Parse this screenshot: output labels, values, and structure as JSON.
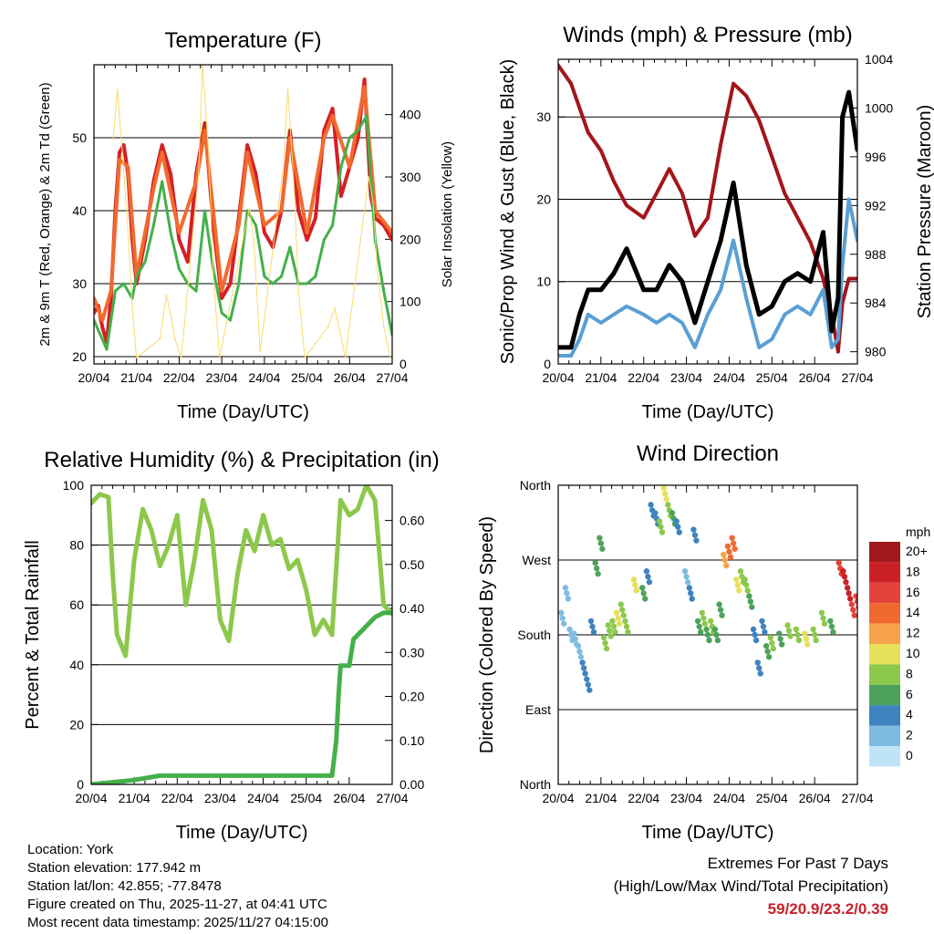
{
  "chart_data": [
    {
      "type": "line",
      "title": "Temperature (F)",
      "xlabel": "Time (Day/UTC)",
      "ylabel": "2m & 9m T (Red, Orange) & 2m Td (Green)",
      "ylabel_right": "Solar Insolation (Yellow)",
      "x_ticks": [
        "20/04",
        "21/04",
        "22/04",
        "23/04",
        "24/04",
        "25/04",
        "26/04",
        "27/04"
      ],
      "ylim": [
        19,
        60
      ],
      "y_ticks": [
        20,
        30,
        40,
        50
      ],
      "ylim_right": [
        0,
        480
      ],
      "y_ticks_right": [
        0,
        100,
        200,
        300,
        400
      ],
      "grid": true,
      "series": [
        {
          "name": "2m T",
          "color": "#d42026",
          "x": [
            0,
            0.1,
            0.2,
            0.3,
            0.4,
            0.5,
            0.6,
            0.7,
            0.8,
            0.9,
            1.0,
            1.2,
            1.4,
            1.6,
            1.8,
            2.0,
            2.2,
            2.4,
            2.6,
            2.8,
            3.0,
            3.2,
            3.4,
            3.6,
            3.8,
            4.0,
            4.2,
            4.4,
            4.6,
            4.8,
            5.0,
            5.2,
            5.4,
            5.6,
            5.8,
            6.0,
            6.2,
            6.35,
            6.5,
            6.6,
            6.8,
            7.0
          ],
          "values": [
            26,
            27,
            24,
            22,
            28,
            40,
            48,
            49,
            45,
            36,
            30,
            36,
            44,
            49,
            45,
            36,
            33,
            45,
            52,
            38,
            28,
            30,
            39,
            49,
            45,
            37,
            35,
            40,
            51,
            40,
            36,
            39,
            51,
            54,
            42,
            46,
            50,
            58,
            42,
            39,
            38,
            36
          ]
        },
        {
          "name": "9m T",
          "color": "#f26a2e",
          "x": [
            0,
            0.2,
            0.4,
            0.6,
            0.8,
            1.0,
            1.4,
            1.6,
            2.0,
            2.4,
            2.6,
            3.0,
            3.4,
            3.6,
            4.0,
            4.4,
            4.6,
            5.0,
            5.4,
            5.6,
            6.0,
            6.35,
            6.6,
            7.0
          ],
          "values": [
            28,
            25,
            29,
            47,
            46,
            31,
            43,
            48,
            37,
            44,
            51,
            29,
            38,
            48,
            38,
            40,
            50,
            37,
            50,
            53,
            46,
            57,
            40,
            37
          ]
        },
        {
          "name": "2m Td",
          "color": "#44b04a",
          "x": [
            0,
            0.3,
            0.5,
            0.7,
            0.9,
            1.0,
            1.2,
            1.4,
            1.6,
            1.8,
            2.0,
            2.2,
            2.4,
            2.6,
            2.8,
            3.0,
            3.2,
            3.4,
            3.6,
            3.8,
            4.0,
            4.2,
            4.4,
            4.6,
            4.8,
            5.0,
            5.2,
            5.4,
            5.6,
            5.8,
            6.0,
            6.2,
            6.4,
            6.6,
            6.8,
            7.0
          ],
          "values": [
            25,
            21,
            29,
            30,
            28,
            31,
            33,
            38,
            44,
            37,
            32,
            30,
            29,
            40,
            32,
            26,
            25,
            30,
            40,
            38,
            31,
            30,
            31,
            35,
            30,
            30,
            31,
            36,
            38,
            46,
            50,
            51,
            53,
            36,
            29,
            23
          ]
        },
        {
          "name": "Solar Insolation",
          "axis": "right",
          "color": "#f8dc6a",
          "x": [
            0.45,
            0.55,
            0.7,
            0.8,
            0.9,
            1.0,
            1.55,
            1.7,
            1.8,
            1.9,
            2.05,
            2.45,
            2.55,
            2.7,
            2.8,
            2.95,
            3.5,
            3.65,
            3.75,
            3.9,
            4.45,
            4.55,
            4.7,
            4.8,
            4.95,
            5.5,
            5.65,
            5.75,
            5.9,
            6.45,
            6.55,
            6.65,
            6.8,
            6.95
          ],
          "values": [
            360,
            440,
            310,
            210,
            90,
            10,
            40,
            110,
            80,
            40,
            10,
            300,
            480,
            330,
            140,
            10,
            200,
            250,
            200,
            20,
            320,
            440,
            280,
            120,
            10,
            60,
            90,
            60,
            10,
            300,
            260,
            150,
            60,
            10
          ]
        }
      ]
    },
    {
      "type": "line",
      "title": "Winds (mph) & Pressure (mb)",
      "xlabel": "Time (Day/UTC)",
      "ylabel": "Sonic/Prop Wind & Gust (Blue, Black)",
      "ylabel_right": "Station Pressure (Maroon)",
      "x_ticks": [
        "20/04",
        "21/04",
        "22/04",
        "23/04",
        "24/04",
        "25/04",
        "26/04",
        "27/04"
      ],
      "ylim": [
        0,
        37
      ],
      "y_ticks": [
        0,
        10,
        20,
        30
      ],
      "ylim_right": [
        979,
        1004
      ],
      "y_ticks_right": [
        980,
        984,
        988,
        992,
        996,
        1000,
        1004
      ],
      "grid": true,
      "series": [
        {
          "name": "Station Pressure",
          "axis": "right",
          "color": "#a3151c",
          "x": [
            0,
            0.3,
            0.5,
            0.7,
            1.0,
            1.3,
            1.6,
            2.0,
            2.3,
            2.6,
            2.9,
            3.2,
            3.5,
            3.8,
            4.1,
            4.4,
            4.7,
            5.0,
            5.3,
            5.6,
            5.9,
            6.2,
            6.4,
            6.55,
            6.65,
            6.8,
            7.0
          ],
          "values": [
            1003.5,
            1002,
            1000,
            998,
            996.5,
            994,
            992,
            991,
            993,
            995,
            993,
            989.5,
            991,
            997,
            1002,
            1001,
            999,
            996,
            993,
            991,
            989,
            986,
            983,
            980,
            984,
            986,
            986
          ]
        },
        {
          "name": "Wind (Sonic/Prop)",
          "color": "#5a9fd4",
          "x": [
            0,
            0.3,
            0.5,
            0.7,
            1.0,
            1.3,
            1.6,
            2.0,
            2.3,
            2.6,
            2.9,
            3.2,
            3.5,
            3.8,
            4.1,
            4.4,
            4.7,
            5.0,
            5.3,
            5.6,
            5.9,
            6.2,
            6.4,
            6.55,
            6.65,
            6.8,
            7.0
          ],
          "values": [
            1,
            1,
            3,
            6,
            5,
            6,
            7,
            6,
            5,
            6,
            5,
            2,
            6,
            9,
            15,
            8,
            2,
            3,
            6,
            7,
            6,
            9,
            2,
            3,
            12,
            20,
            15
          ]
        },
        {
          "name": "Gust",
          "color": "#000000",
          "x": [
            0,
            0.3,
            0.5,
            0.7,
            1.0,
            1.3,
            1.6,
            2.0,
            2.3,
            2.6,
            2.9,
            3.2,
            3.5,
            3.8,
            4.1,
            4.4,
            4.7,
            5.0,
            5.3,
            5.6,
            5.9,
            6.2,
            6.4,
            6.55,
            6.65,
            6.8,
            7.0
          ],
          "values": [
            2,
            2,
            6,
            9,
            9,
            11,
            14,
            9,
            9,
            12,
            10,
            5,
            10,
            15,
            22,
            12,
            6,
            7,
            10,
            11,
            10,
            16,
            4,
            8,
            30,
            33,
            26
          ]
        }
      ]
    },
    {
      "type": "line",
      "title": "Relative Humidity (%) & Precipitation (in)",
      "xlabel": "Time (Day/UTC)",
      "ylabel": "Percent & Total Rainfall",
      "x_ticks": [
        "20/04",
        "21/04",
        "22/04",
        "23/04",
        "24/04",
        "25/04",
        "26/04",
        "27/04"
      ],
      "ylim": [
        0,
        100
      ],
      "y_ticks": [
        0,
        20,
        40,
        60,
        80,
        100
      ],
      "ylim_right": [
        0,
        0.68
      ],
      "y_ticks_right": [
        "0.00",
        "0.10",
        "0.20",
        "0.30",
        "0.40",
        "0.50",
        "0.60"
      ],
      "grid": true,
      "series": [
        {
          "name": "Relative Humidity",
          "color": "#8cc84b",
          "x": [
            0,
            0.2,
            0.4,
            0.5,
            0.6,
            0.8,
            1.0,
            1.2,
            1.4,
            1.6,
            1.8,
            2.0,
            2.2,
            2.4,
            2.6,
            2.8,
            3.0,
            3.2,
            3.4,
            3.6,
            3.8,
            4.0,
            4.2,
            4.4,
            4.6,
            4.8,
            5.0,
            5.2,
            5.4,
            5.6,
            5.8,
            6.0,
            6.2,
            6.4,
            6.6,
            6.8,
            7.0
          ],
          "values": [
            94,
            97,
            96,
            70,
            50,
            43,
            75,
            92,
            85,
            73,
            80,
            90,
            60,
            75,
            95,
            85,
            55,
            48,
            70,
            85,
            78,
            90,
            80,
            82,
            72,
            75,
            65,
            50,
            55,
            50,
            95,
            90,
            92,
            100,
            95,
            60,
            57
          ]
        },
        {
          "name": "Total Rainfall",
          "axis": "right",
          "color": "#44b04a",
          "x": [
            0,
            1.0,
            1.6,
            2.0,
            3.0,
            4.0,
            5.0,
            5.6,
            5.7,
            5.75,
            5.8,
            5.9,
            6.0,
            6.1,
            6.3,
            6.5,
            6.6,
            6.8,
            7.0
          ],
          "values": [
            0,
            0.01,
            0.02,
            0.02,
            0.02,
            0.02,
            0.02,
            0.02,
            0.1,
            0.2,
            0.27,
            0.27,
            0.27,
            0.33,
            0.35,
            0.37,
            0.38,
            0.39,
            0.39
          ]
        }
      ]
    },
    {
      "type": "scatter",
      "title": "Wind Direction",
      "xlabel": "Time (Day/UTC)",
      "ylabel": "Direction (Colored By Speed)",
      "x_ticks": [
        "20/04",
        "21/04",
        "22/04",
        "23/04",
        "24/04",
        "25/04",
        "26/04",
        "27/04"
      ],
      "ylim": [
        0,
        360
      ],
      "y_ticks": [
        "North",
        "East",
        "South",
        "West",
        "North"
      ],
      "grid": true,
      "colorbar": {
        "title": "mph",
        "labels": [
          "20+",
          "18",
          "16",
          "14",
          "12",
          "10",
          "8",
          "6",
          "4",
          "2",
          "0"
        ],
        "colors": [
          "#a01a1c",
          "#cc2027",
          "#e3433a",
          "#f0692f",
          "#f6a24a",
          "#e6e05a",
          "#8cc84b",
          "#4da25a",
          "#3d84c0",
          "#7fbce3",
          "#bfe4f8"
        ]
      },
      "series": [
        {
          "name": "Direction",
          "x": [
            0.1,
            0.2,
            0.3,
            0.4,
            0.5,
            0.6,
            0.7,
            0.8,
            0.9,
            1.0,
            1.1,
            1.2,
            1.3,
            1.4,
            1.5,
            1.6,
            1.8,
            2.0,
            2.1,
            2.2,
            2.3,
            2.4,
            2.5,
            2.6,
            2.7,
            2.8,
            3.0,
            3.1,
            3.2,
            3.3,
            3.4,
            3.5,
            3.6,
            3.7,
            3.8,
            3.9,
            4.0,
            4.1,
            4.2,
            4.3,
            4.4,
            4.5,
            4.6,
            4.7,
            4.8,
            4.9,
            5.0,
            5.2,
            5.4,
            5.6,
            5.8,
            6.0,
            6.2,
            6.4,
            6.6,
            6.7,
            6.8,
            6.9,
            7.0
          ],
          "values": [
            200,
            230,
            180,
            175,
            160,
            140,
            120,
            190,
            260,
            290,
            170,
            185,
            190,
            200,
            210,
            190,
            240,
            230,
            250,
            330,
            320,
            310,
            350,
            330,
            320,
            310,
            250,
            230,
            300,
            190,
            200,
            180,
            190,
            180,
            210,
            270,
            280,
            290,
            240,
            250,
            240,
            220,
            180,
            140,
            190,
            160,
            170,
            175,
            185,
            180,
            175,
            180,
            200,
            190,
            260,
            250,
            230,
            210,
            220
          ],
          "speed": [
            1,
            2,
            1,
            1,
            2,
            3,
            4,
            3,
            5,
            6,
            7,
            8,
            8,
            9,
            8,
            7,
            10,
            6,
            4,
            3,
            4,
            8,
            9,
            7,
            5,
            3,
            2,
            3,
            4,
            6,
            8,
            6,
            7,
            6,
            5,
            12,
            13,
            14,
            9,
            8,
            7,
            6,
            4,
            3,
            4,
            5,
            7,
            6,
            7,
            8,
            9,
            7,
            8,
            6,
            16,
            18,
            17,
            16,
            15
          ]
        }
      ]
    }
  ],
  "info": {
    "location": "Location: York",
    "elevation": "Station elevation: 177.942 m",
    "latlon": "Station lat/lon: 42.855; -77.8478",
    "created": "Figure created on Thu, 2025-11-27, at 04:41 UTC",
    "recent": "Most recent data timestamp: 2025/11/27 04:15:00"
  },
  "extremes": {
    "title": "Extremes For Past 7 Days",
    "subtitle": "(High/Low/Max Wind/Total Precipitation)",
    "values": "59/20.9/23.2/0.39"
  }
}
